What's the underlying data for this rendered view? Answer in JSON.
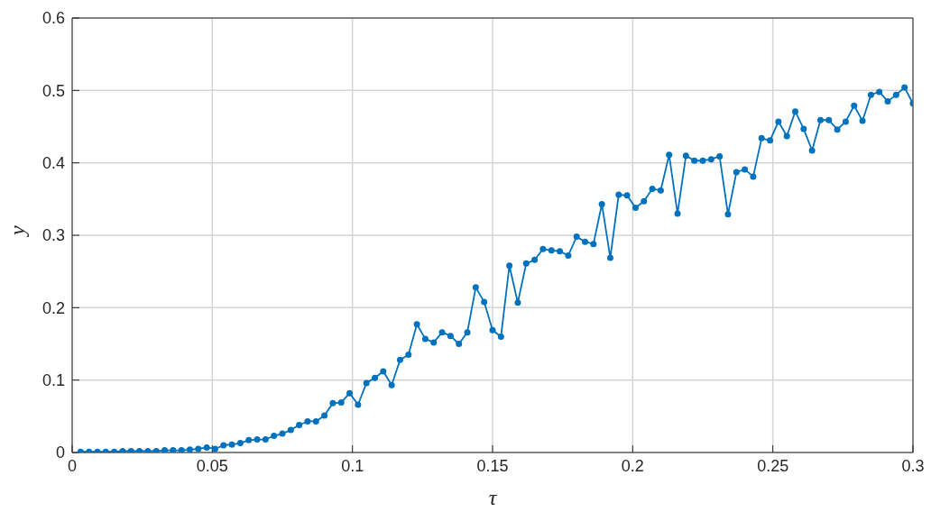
{
  "chart_data": {
    "type": "line",
    "xlabel": "τ",
    "ylabel": "y",
    "x": [
      0.003,
      0.006,
      0.009,
      0.012,
      0.015,
      0.018,
      0.021,
      0.024,
      0.027,
      0.03,
      0.033,
      0.036,
      0.039,
      0.042,
      0.045,
      0.048,
      0.051,
      0.054,
      0.057,
      0.06,
      0.063,
      0.066,
      0.069,
      0.072,
      0.075,
      0.078,
      0.081,
      0.084,
      0.087,
      0.09,
      0.093,
      0.096,
      0.099,
      0.102,
      0.105,
      0.108,
      0.111,
      0.114,
      0.117,
      0.12,
      0.123,
      0.126,
      0.129,
      0.132,
      0.135,
      0.138,
      0.141,
      0.144,
      0.147,
      0.15,
      0.153,
      0.156,
      0.159,
      0.162,
      0.165,
      0.168,
      0.171,
      0.174,
      0.177,
      0.18,
      0.183,
      0.186,
      0.189,
      0.192,
      0.195,
      0.198,
      0.201,
      0.204,
      0.207,
      0.21,
      0.213,
      0.216,
      0.219,
      0.222,
      0.225,
      0.228,
      0.231,
      0.234,
      0.237,
      0.24,
      0.243,
      0.246,
      0.249,
      0.252,
      0.255,
      0.258,
      0.261,
      0.264,
      0.267,
      0.27,
      0.273,
      0.276,
      0.279,
      0.282,
      0.285,
      0.288,
      0.291,
      0.294,
      0.297,
      0.3
    ],
    "series": [
      {
        "color": "#0072bd",
        "values": [
          0.001,
          0.001,
          0.001,
          0.001,
          0.001,
          0.002,
          0.002,
          0.002,
          0.002,
          0.002,
          0.003,
          0.003,
          0.003,
          0.004,
          0.005,
          0.007,
          0.005,
          0.01,
          0.011,
          0.013,
          0.017,
          0.018,
          0.018,
          0.023,
          0.026,
          0.031,
          0.038,
          0.043,
          0.043,
          0.051,
          0.068,
          0.069,
          0.082,
          0.066,
          0.096,
          0.103,
          0.112,
          0.093,
          0.128,
          0.135,
          0.177,
          0.157,
          0.152,
          0.166,
          0.161,
          0.15,
          0.166,
          0.228,
          0.208,
          0.169,
          0.16,
          0.258,
          0.207,
          0.261,
          0.266,
          0.281,
          0.279,
          0.278,
          0.272,
          0.298,
          0.291,
          0.288,
          0.343,
          0.269,
          0.356,
          0.355,
          0.338,
          0.347,
          0.364,
          0.362,
          0.411,
          0.33,
          0.41,
          0.403,
          0.403,
          0.405,
          0.409,
          0.329,
          0.387,
          0.391,
          0.381,
          0.434,
          0.431,
          0.457,
          0.437,
          0.471,
          0.447,
          0.417,
          0.459,
          0.459,
          0.446,
          0.457,
          0.479,
          0.458,
          0.494,
          0.498,
          0.485,
          0.494,
          0.504,
          0.482
        ]
      }
    ],
    "xlim": [
      0,
      0.3
    ],
    "xticks": [
      0,
      0.05,
      0.1,
      0.15,
      0.2,
      0.25,
      0.3
    ],
    "ylim": [
      0,
      0.6
    ],
    "yticks": [
      0,
      0.1,
      0.2,
      0.3,
      0.4,
      0.5,
      0.6
    ],
    "grid": true,
    "marker": "circle",
    "line_style": "solid"
  }
}
